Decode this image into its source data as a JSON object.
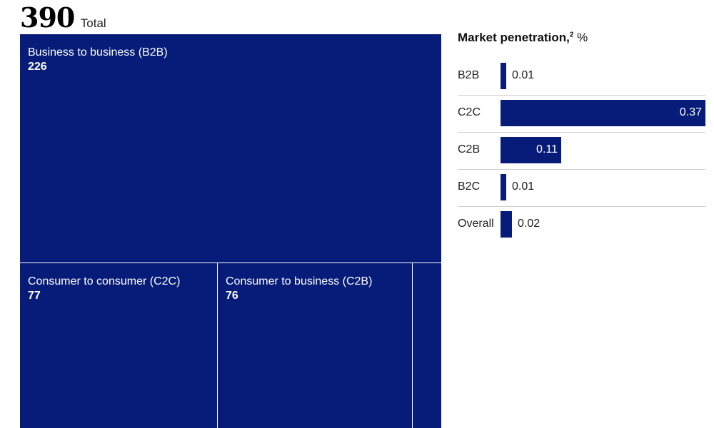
{
  "total": {
    "value": "390",
    "label": "Total"
  },
  "chart_data": [
    {
      "type": "treemap",
      "title": "",
      "total": 390,
      "items": [
        {
          "name": "Business to business (B2B)",
          "value": 226
        },
        {
          "name": "Consumer to consumer (C2C)",
          "value": 77
        },
        {
          "name": "Consumer to business (C2B)",
          "value": 76
        },
        {
          "name": "",
          "value": 11
        }
      ]
    },
    {
      "type": "bar",
      "orientation": "horizontal",
      "title": "Market penetration,",
      "title_superscript": "2",
      "title_unit": "%",
      "categories": [
        "B2B",
        "C2C",
        "C2B",
        "B2C",
        "Overall"
      ],
      "values": [
        0.01,
        0.37,
        0.11,
        0.01,
        0.02
      ],
      "value_labels": [
        "0.01",
        "0.37",
        "0.11",
        "0.01",
        "0.02"
      ],
      "xlim": [
        0,
        0.37
      ],
      "color": "#061c78"
    }
  ]
}
